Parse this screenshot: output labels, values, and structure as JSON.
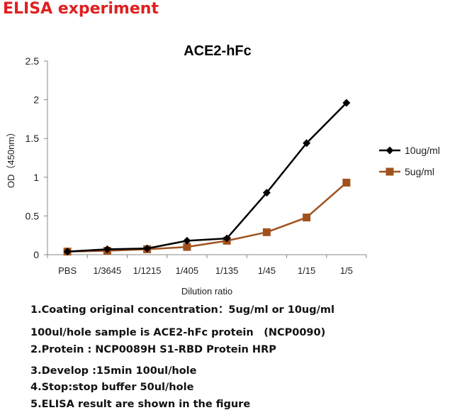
{
  "page": {
    "heading": "ELISA experiment"
  },
  "chart_data": {
    "type": "line",
    "title": "ACE2-hFc",
    "xlabel": "Dilution ratio",
    "ylabel": "OD（450nm）",
    "categories": [
      "PBS",
      "1/3645",
      "1/1215",
      "1/405",
      "1/135",
      "1/45",
      "1/15",
      "1/5"
    ],
    "ylim": [
      0,
      2.5
    ],
    "yticks": [
      0,
      0.5,
      1,
      1.5,
      2,
      2.5
    ],
    "ytick_labels": [
      "0",
      "0.5",
      "1",
      "1.5",
      "2",
      "2.5"
    ],
    "grid": false,
    "legend_position": "right",
    "series": [
      {
        "name": "10ug/ml",
        "color": "#000000",
        "marker": "diamond",
        "values": [
          0.04,
          0.07,
          0.08,
          0.18,
          0.21,
          0.8,
          1.44,
          1.96
        ]
      },
      {
        "name": "5ug/ml",
        "color": "#a0521e",
        "marker": "square",
        "values": [
          0.04,
          0.05,
          0.07,
          0.1,
          0.18,
          0.29,
          0.48,
          0.93
        ]
      }
    ]
  },
  "notes": [
    "1.Coating original concentration：5ug/ml or 10ug/ml",
    "100ul/hole sample is ACE2-hFc protein　(NCP0090)",
    "2.Protein : NCP0089H S1-RBD Protein HRP",
    "3.Develop :15min  100ul/hole",
    "4.Stop:stop buffer  50ul/hole",
    "5.ELISA result are shown in the figure"
  ]
}
